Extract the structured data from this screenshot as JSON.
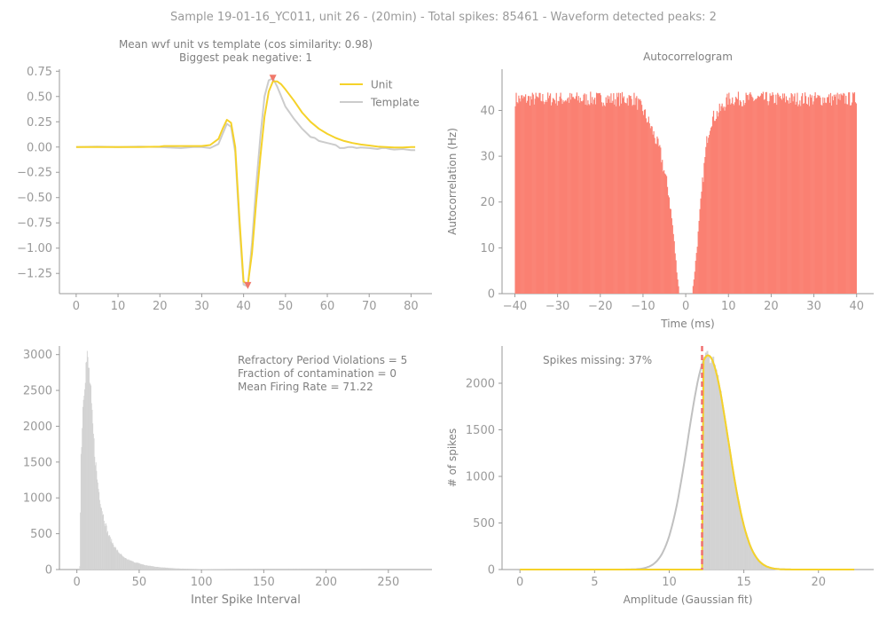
{
  "figure": {
    "suptitle": "Sample 19-01-16_YC011, unit 26 - (20min) - Total spikes: 85461 - Waveform detected peaks: 2",
    "colors": {
      "axis": "#9a9a9a",
      "text": "#808080",
      "unit": "#f5d22a",
      "template": "#cccccc",
      "acg": "#fa8072",
      "isi": "#d3d3d3",
      "peak_marker": "#f0786a",
      "cutoff": "#f07070"
    }
  },
  "chart_data": [
    {
      "type": "line",
      "title": "Mean wvf unit vs template (cos similarity: 0.98)",
      "subtitle": "Biggest peak negative: 1",
      "xlabel": "",
      "ylabel": "",
      "xlim": [
        -4,
        85
      ],
      "ylim": [
        -1.45,
        0.77
      ],
      "xticks": [
        0,
        10,
        20,
        30,
        40,
        50,
        60,
        70,
        80
      ],
      "yticks": [
        0.75,
        0.5,
        0.25,
        0.0,
        -0.25,
        -0.5,
        -0.75,
        -1.0,
        -1.25
      ],
      "ytick_labels": [
        "0.75",
        "0.50",
        "0.25",
        "0.00",
        "−0.25",
        "−0.50",
        "−0.75",
        "−1.00",
        "−1.25"
      ],
      "legend_position": "top-right",
      "series": [
        {
          "name": "Unit",
          "color": "#f5d22a",
          "x": [
            0,
            5,
            10,
            15,
            20,
            21,
            25,
            28,
            30,
            32,
            34,
            35,
            36,
            37,
            38,
            39,
            40,
            41,
            42,
            43,
            44,
            45,
            46,
            47,
            48,
            49,
            50,
            52,
            54,
            56,
            58,
            60,
            62,
            64,
            66,
            68,
            70,
            72,
            74,
            76,
            78,
            80,
            81
          ],
          "y": [
            0.0,
            0.0,
            0.0,
            0.0,
            0.005,
            0.01,
            0.01,
            0.01,
            0.01,
            0.02,
            0.08,
            0.18,
            0.27,
            0.24,
            0.0,
            -0.7,
            -1.33,
            -1.36,
            -1.05,
            -0.55,
            -0.1,
            0.3,
            0.55,
            0.65,
            0.65,
            0.62,
            0.57,
            0.46,
            0.34,
            0.25,
            0.18,
            0.13,
            0.09,
            0.06,
            0.04,
            0.025,
            0.015,
            0.005,
            0.0,
            -0.005,
            -0.005,
            0.0,
            0.0
          ]
        },
        {
          "name": "Template",
          "color": "#cccccc",
          "x": [
            0,
            5,
            10,
            15,
            20,
            22,
            25,
            28,
            30,
            32,
            34,
            35,
            36,
            37,
            38,
            39,
            40,
            41,
            42,
            43,
            44,
            45,
            46,
            47,
            48,
            49,
            50,
            51,
            52,
            54,
            56,
            57,
            58,
            60,
            61,
            62,
            63,
            64,
            65,
            66,
            67,
            68,
            70,
            72,
            73,
            74,
            75,
            76,
            78,
            80,
            81
          ],
          "y": [
            0.0,
            0.005,
            0.0,
            0.005,
            0.0,
            -0.005,
            -0.01,
            0.0,
            0.0,
            -0.01,
            0.03,
            0.13,
            0.23,
            0.2,
            -0.05,
            -0.78,
            -1.36,
            -1.38,
            -0.95,
            -0.38,
            0.1,
            0.5,
            0.66,
            0.68,
            0.6,
            0.5,
            0.4,
            0.34,
            0.28,
            0.18,
            0.1,
            0.09,
            0.06,
            0.04,
            0.03,
            0.02,
            -0.01,
            -0.01,
            0.0,
            0.0,
            -0.01,
            -0.005,
            -0.01,
            -0.02,
            -0.01,
            -0.01,
            -0.02,
            -0.025,
            -0.02,
            -0.03,
            -0.03
          ]
        }
      ],
      "markers": [
        {
          "name": "positive peak",
          "x": 47,
          "y": 0.68,
          "shape": "triangle-down"
        },
        {
          "name": "negative peak",
          "x": 41,
          "y": -1.37,
          "shape": "triangle-down"
        }
      ]
    },
    {
      "type": "bar",
      "title": "Autocorrelogram",
      "xlabel": "Time (ms)",
      "ylabel": "Autocorrelation (Hz)",
      "xlim": [
        -43,
        44
      ],
      "ylim": [
        0,
        49
      ],
      "xticks": [
        -40,
        -30,
        -20,
        -10,
        0,
        10,
        20,
        30,
        40
      ],
      "xtick_labels": [
        "−40",
        "−30",
        "−20",
        "−10",
        "0",
        "10",
        "20",
        "30",
        "40"
      ],
      "yticks": [
        0,
        10,
        20,
        30,
        40
      ],
      "bin_width": 0.2,
      "baseline_hz": 42.5,
      "refractory_gap_ms": [
        -1.5,
        1.5
      ],
      "profile": [
        [
          -40,
          42.5
        ],
        [
          -12,
          42.5
        ],
        [
          -10,
          40
        ],
        [
          -8,
          36
        ],
        [
          -6,
          31
        ],
        [
          -4,
          22
        ],
        [
          -3,
          14
        ],
        [
          -2,
          4
        ],
        [
          -1.5,
          0
        ],
        [
          1.5,
          0
        ],
        [
          2,
          4
        ],
        [
          3,
          14
        ],
        [
          4,
          25
        ],
        [
          5,
          34
        ],
        [
          6,
          38
        ],
        [
          8,
          40
        ],
        [
          10,
          42.5
        ],
        [
          40,
          42.5
        ]
      ]
    },
    {
      "type": "bar",
      "title": "",
      "xlabel": "Inter Spike Interval",
      "ylabel": "",
      "xlim": [
        -14,
        285
      ],
      "ylim": [
        0,
        3120
      ],
      "xticks": [
        0,
        50,
        100,
        150,
        200,
        250
      ],
      "yticks": [
        0,
        500,
        1000,
        1500,
        2000,
        2500,
        3000
      ],
      "bin_width": 0.5,
      "profile": [
        [
          2,
          0
        ],
        [
          2.5,
          100
        ],
        [
          3,
          1500
        ],
        [
          4,
          1900
        ],
        [
          5,
          2400
        ],
        [
          6,
          2650
        ],
        [
          7,
          2800
        ],
        [
          8,
          2950
        ],
        [
          9,
          2850
        ],
        [
          10,
          2700
        ],
        [
          11,
          2500
        ],
        [
          12,
          2150
        ],
        [
          14,
          1700
        ],
        [
          16,
          1300
        ],
        [
          18,
          1050
        ],
        [
          20,
          850
        ],
        [
          22,
          700
        ],
        [
          25,
          500
        ],
        [
          28,
          390
        ],
        [
          32,
          270
        ],
        [
          38,
          160
        ],
        [
          45,
          110
        ],
        [
          55,
          60
        ],
        [
          65,
          35
        ],
        [
          80,
          15
        ],
        [
          100,
          6
        ],
        [
          130,
          2
        ],
        [
          160,
          1
        ],
        [
          200,
          0.5
        ],
        [
          270,
          0
        ]
      ],
      "annotations": [
        "Refractory Period Violations = 5",
        "Fraction of contamination = 0",
        "Mean Firing Rate = 71.22"
      ]
    },
    {
      "type": "bar",
      "title": "",
      "xlabel": "Amplitude (Gaussian fit)",
      "ylabel": "# of spikes",
      "xlim": [
        -1.2,
        23.7
      ],
      "ylim": [
        0,
        2400
      ],
      "xticks": [
        0,
        5,
        10,
        15,
        20
      ],
      "yticks": [
        0,
        500,
        1000,
        1500,
        2000
      ],
      "bin_width": 0.1,
      "cutoff": 12.2,
      "gaussian": {
        "mean": 12.6,
        "sd": 1.35,
        "peak": 2300,
        "color": "#c0c0c0"
      },
      "fit_color": "#f5d22a",
      "annotation": "Spikes missing: 37%"
    }
  ]
}
